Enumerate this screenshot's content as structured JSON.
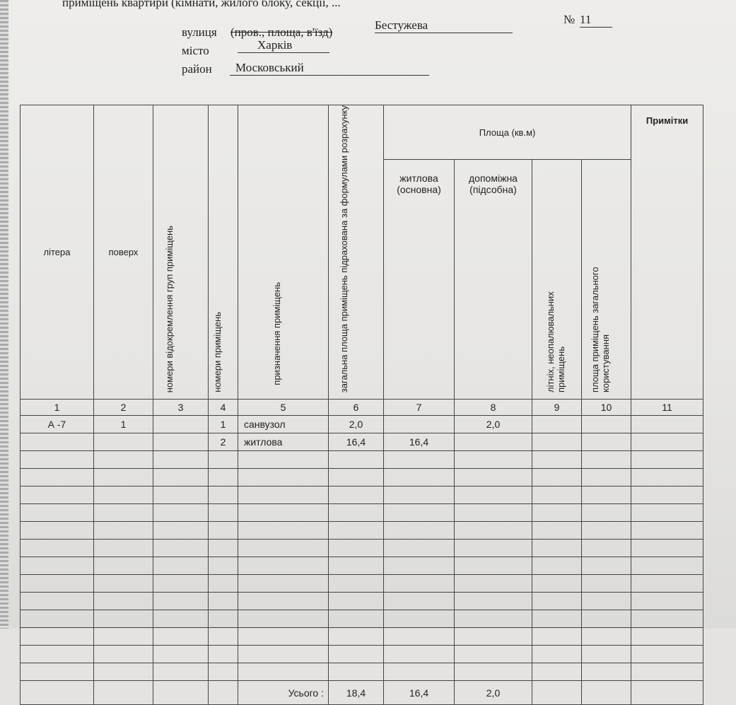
{
  "header": {
    "top_line": "приміщень квартири (кімнати, жилого блоку, секції, ...",
    "street_label": "вулиця",
    "street_alt_label": "(пров., площа, в'їзд)",
    "street_value": "Бестужева",
    "number_label": "№",
    "number_value": "11",
    "city_label": "місто",
    "city_value": "Харків",
    "district_label": "район",
    "district_value": "Московський"
  },
  "table": {
    "headers": {
      "litera": "літера",
      "poverkh": "поверх",
      "groups": "номери відокремлення груп приміщень",
      "room_numbers": "номери приміщень",
      "purpose": "призначення приміщень",
      "total_area": "загальна площа приміщень підрахована за формулами розрахунку",
      "area_group": "Площа (кв.м)",
      "living": "житлова (основна)",
      "auxiliary": "допоміжна (підсобна)",
      "summer": "літніх, неопалювальних приміщень",
      "common": "площа приміщень загального користування",
      "notes": "Примітки"
    },
    "column_numbers": [
      "1",
      "2",
      "3",
      "4",
      "5",
      "6",
      "7",
      "8",
      "9",
      "10",
      "11"
    ],
    "rows": [
      [
        "А -7",
        "1",
        "",
        "1",
        "санвузол",
        "2,0",
        "",
        "2,0",
        "",
        "",
        ""
      ],
      [
        "",
        "",
        "",
        "2",
        "житлова",
        "16,4",
        "16,4",
        "",
        "",
        "",
        ""
      ]
    ],
    "total": {
      "label": "Усього :",
      "total_area": "18,4",
      "living": "16,4",
      "auxiliary": "2,0"
    }
  }
}
